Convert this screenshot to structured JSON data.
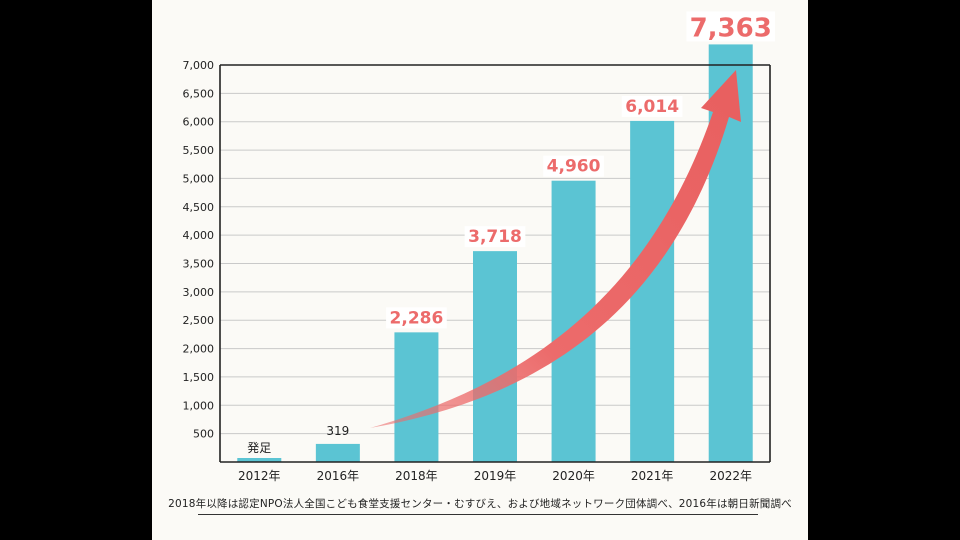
{
  "chart_data": {
    "type": "bar",
    "categories": [
      "2012年",
      "2016年",
      "2018年",
      "2019年",
      "2020年",
      "2021年",
      "2022年"
    ],
    "values": [
      0,
      319,
      2286,
      3718,
      4960,
      6014,
      7363
    ],
    "data_labels": [
      "発足",
      "319",
      "2,286",
      "3,718",
      "4,960",
      "6,014",
      "7,363"
    ],
    "yticks": [
      "500",
      "1,000",
      "1,500",
      "2,000",
      "2,500",
      "3,000",
      "3,500",
      "4,000",
      "4,500",
      "5,000",
      "5,500",
      "6,000",
      "6,500",
      "7,000"
    ],
    "ylim": [
      0,
      7000
    ],
    "grid": true,
    "title": "",
    "xlabel": "",
    "ylabel": ""
  },
  "footnote": "2018年以降は認定NPO法人全国こども食堂支援センター・むすびえ、および地域ネットワーク団体調べ、2016年は朝日新聞調べ",
  "colors": {
    "bar": "#5bc4d3",
    "accent": "#ec6b6b",
    "grid": "#c9c9c9",
    "axis": "#222222",
    "text": "#222222",
    "background": "#fbfaf6"
  }
}
